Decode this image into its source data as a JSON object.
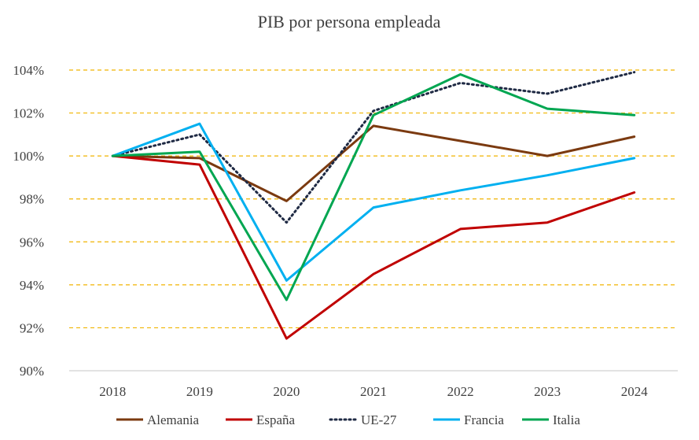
{
  "chart_data": {
    "type": "line",
    "title": "PIB por persona empleada",
    "xlabel": "",
    "ylabel": "",
    "categories": [
      "2018",
      "2019",
      "2020",
      "2021",
      "2022",
      "2023",
      "2024"
    ],
    "ylim": [
      90,
      104
    ],
    "yticks": [
      90,
      92,
      94,
      96,
      98,
      100,
      102,
      104
    ],
    "ytick_labels": [
      "90%",
      "92%",
      "94%",
      "96%",
      "98%",
      "100%",
      "102%",
      "104%"
    ],
    "grid": "horizontal dashed",
    "legend_position": "bottom",
    "series": [
      {
        "name": "Alemania",
        "color": "#7B3A10",
        "style": "solid",
        "values": [
          100.0,
          99.9,
          97.9,
          101.4,
          100.7,
          100.0,
          100.9
        ]
      },
      {
        "name": "España",
        "color": "#C00000",
        "style": "solid",
        "values": [
          100.0,
          99.6,
          91.5,
          94.5,
          96.6,
          96.9,
          98.3
        ]
      },
      {
        "name": "UE-27",
        "color": "#1F2A44",
        "style": "dotted",
        "values": [
          100.0,
          101.0,
          96.9,
          102.1,
          103.4,
          102.9,
          103.9
        ]
      },
      {
        "name": "Francia",
        "color": "#00B0F0",
        "style": "solid",
        "values": [
          100.0,
          101.5,
          94.2,
          97.6,
          98.4,
          99.1,
          99.9
        ]
      },
      {
        "name": "Italia",
        "color": "#00A651",
        "style": "solid",
        "values": [
          100.0,
          100.2,
          93.3,
          101.9,
          103.8,
          102.2,
          101.9
        ]
      }
    ],
    "grid_color": "#F0B400",
    "axis_color": "#D9D9D9"
  }
}
